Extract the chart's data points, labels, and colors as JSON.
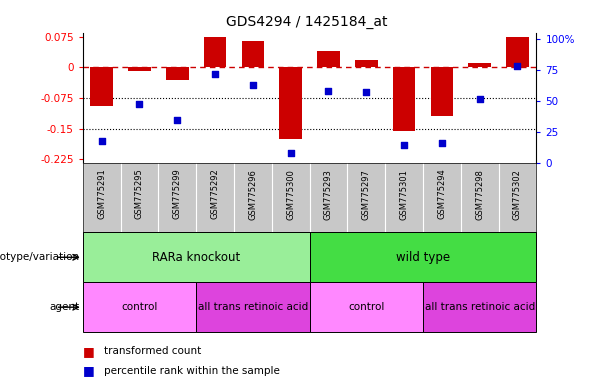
{
  "title": "GDS4294 / 1425184_at",
  "samples": [
    "GSM775291",
    "GSM775295",
    "GSM775299",
    "GSM775292",
    "GSM775296",
    "GSM775300",
    "GSM775293",
    "GSM775297",
    "GSM775301",
    "GSM775294",
    "GSM775298",
    "GSM775302"
  ],
  "bar_values": [
    -0.095,
    -0.008,
    -0.03,
    0.075,
    0.065,
    -0.175,
    0.04,
    0.018,
    -0.155,
    -0.12,
    0.01,
    0.075
  ],
  "percentile_values": [
    18,
    48,
    35,
    72,
    63,
    8,
    58,
    57,
    15,
    16,
    52,
    78
  ],
  "bar_color": "#CC0000",
  "dot_color": "#0000CC",
  "zero_line_color": "#CC0000",
  "hline_color": "#000000",
  "hline_values": [
    -0.075,
    -0.15
  ],
  "ylim_left": [
    -0.235,
    0.085
  ],
  "ylim_right": [
    0,
    105
  ],
  "yticks_left": [
    0.075,
    0,
    -0.075,
    -0.15,
    -0.225
  ],
  "yticks_right": [
    100,
    75,
    50,
    25,
    0
  ],
  "ytick_labels_right": [
    "100%",
    "75",
    "50",
    "25",
    "0"
  ],
  "genotype_groups": [
    {
      "label": "RARa knockout",
      "start": 0,
      "end": 6,
      "color": "#99EE99"
    },
    {
      "label": "wild type",
      "start": 6,
      "end": 12,
      "color": "#44DD44"
    }
  ],
  "agent_groups": [
    {
      "label": "control",
      "start": 0,
      "end": 3,
      "color": "#FF88FF"
    },
    {
      "label": "all trans retinoic acid",
      "start": 3,
      "end": 6,
      "color": "#DD44DD"
    },
    {
      "label": "control",
      "start": 6,
      "end": 9,
      "color": "#FF88FF"
    },
    {
      "label": "all trans retinoic acid",
      "start": 9,
      "end": 12,
      "color": "#DD44DD"
    }
  ],
  "legend_bar_label": "transformed count",
  "legend_dot_label": "percentile rank within the sample",
  "bar_width": 0.6,
  "genotype_label": "genotype/variation",
  "agent_label": "agent",
  "sample_bg_color": "#C8C8C8",
  "sample_divider_color": "#FFFFFF"
}
